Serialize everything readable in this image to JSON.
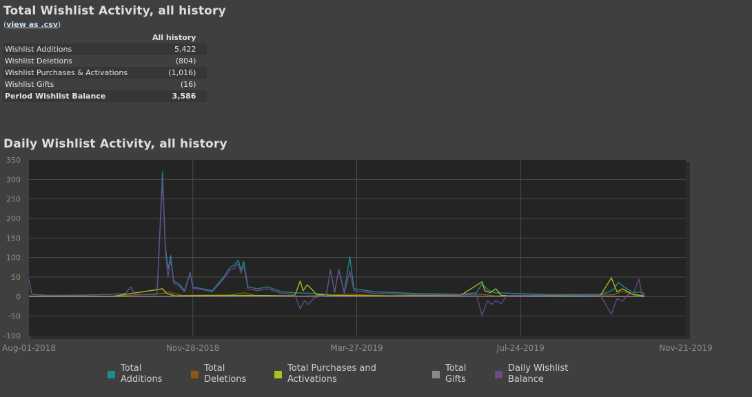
{
  "summary": {
    "title": "Total Wishlist Activity, all history",
    "csv_prefix": "(",
    "csv_link": "view as .csv",
    "csv_suffix": ")",
    "column_header": "All history",
    "rows": [
      {
        "label": "Wishlist Additions",
        "value": "5,422"
      },
      {
        "label": "Wishlist Deletions",
        "value": "(804)"
      },
      {
        "label": "Wishlist Purchases & Activations",
        "value": "(1,016)"
      },
      {
        "label": "Wishlist Gifts",
        "value": "(16)"
      },
      {
        "label": "Period Wishlist Balance",
        "value": "3,586"
      }
    ]
  },
  "chart_title": "Daily Wishlist Activity, all history",
  "chart_data": {
    "type": "line",
    "title": "Daily Wishlist Activity, all history",
    "xlabel": "",
    "ylabel": "",
    "xlim": [
      "2018-08-01",
      "2019-11-21"
    ],
    "ylim": [
      -100,
      350
    ],
    "y_ticks": [
      -100,
      -50,
      0,
      50,
      100,
      150,
      200,
      250,
      300,
      350
    ],
    "x_ticks": [
      "Aug-01-2018",
      "Nov-28-2018",
      "Mar-27-2019",
      "Jul-24-2019",
      "Nov-21-2019"
    ],
    "grid": true,
    "background": "#242424",
    "legend_position": "bottom",
    "series": [
      {
        "name": "Total Additions",
        "color": "#1e8c8c",
        "points": [
          [
            "2018-08-01",
            44
          ],
          [
            "2018-08-03",
            6
          ],
          [
            "2018-08-15",
            3
          ],
          [
            "2018-09-10",
            4
          ],
          [
            "2018-09-30",
            6
          ],
          [
            "2018-10-10",
            8
          ],
          [
            "2018-10-14",
            25
          ],
          [
            "2018-10-17",
            5
          ],
          [
            "2018-11-02",
            6
          ],
          [
            "2018-11-06",
            320
          ],
          [
            "2018-11-08",
            130
          ],
          [
            "2018-11-10",
            70
          ],
          [
            "2018-11-12",
            105
          ],
          [
            "2018-11-14",
            40
          ],
          [
            "2018-11-18",
            32
          ],
          [
            "2018-11-22",
            15
          ],
          [
            "2018-11-26",
            62
          ],
          [
            "2018-11-28",
            25
          ],
          [
            "2018-12-05",
            20
          ],
          [
            "2018-12-12",
            15
          ],
          [
            "2018-12-20",
            48
          ],
          [
            "2018-12-25",
            75
          ],
          [
            "2018-12-28",
            80
          ],
          [
            "2018-12-31",
            93
          ],
          [
            "2019-01-02",
            68
          ],
          [
            "2019-01-04",
            90
          ],
          [
            "2019-01-07",
            25
          ],
          [
            "2019-01-14",
            20
          ],
          [
            "2019-01-21",
            25
          ],
          [
            "2019-02-01",
            12
          ],
          [
            "2019-02-10",
            10
          ],
          [
            "2019-02-25",
            8
          ],
          [
            "2019-03-05",
            6
          ],
          [
            "2019-03-08",
            68
          ],
          [
            "2019-03-11",
            12
          ],
          [
            "2019-03-14",
            70
          ],
          [
            "2019-03-18",
            10
          ],
          [
            "2019-03-22",
            102
          ],
          [
            "2019-03-25",
            20
          ],
          [
            "2019-04-10",
            12
          ],
          [
            "2019-05-10",
            8
          ],
          [
            "2019-06-10",
            6
          ],
          [
            "2019-06-22",
            10
          ],
          [
            "2019-06-26",
            33
          ],
          [
            "2019-06-30",
            18
          ],
          [
            "2019-07-05",
            10
          ],
          [
            "2019-08-15",
            5
          ],
          [
            "2019-09-20",
            6
          ],
          [
            "2019-09-26",
            12
          ],
          [
            "2019-09-30",
            20
          ],
          [
            "2019-10-03",
            37
          ],
          [
            "2019-10-07",
            25
          ],
          [
            "2019-10-14",
            10
          ],
          [
            "2019-10-18",
            12
          ],
          [
            "2019-10-22",
            8
          ]
        ]
      },
      {
        "name": "Total Deletions",
        "color": "#8a5a14",
        "points": [
          [
            "2018-08-01",
            2
          ],
          [
            "2018-09-01",
            1
          ],
          [
            "2018-10-01",
            1
          ],
          [
            "2018-11-06",
            8
          ],
          [
            "2018-11-10",
            12
          ],
          [
            "2018-11-20",
            3
          ],
          [
            "2018-12-25",
            4
          ],
          [
            "2019-01-04",
            10
          ],
          [
            "2019-01-12",
            3
          ],
          [
            "2019-02-15",
            1
          ],
          [
            "2019-03-10",
            4
          ],
          [
            "2019-03-22",
            6
          ],
          [
            "2019-04-20",
            2
          ],
          [
            "2019-06-26",
            6
          ],
          [
            "2019-07-05",
            2
          ],
          [
            "2019-08-20",
            1
          ],
          [
            "2019-09-30",
            5
          ],
          [
            "2019-10-06",
            14
          ],
          [
            "2019-10-14",
            5
          ],
          [
            "2019-10-22",
            2
          ]
        ]
      },
      {
        "name": "Total Purchases and Activations",
        "color": "#a4c61b",
        "points": [
          [
            "2018-08-01",
            0
          ],
          [
            "2018-09-01",
            1
          ],
          [
            "2018-10-01",
            1
          ],
          [
            "2018-11-06",
            20
          ],
          [
            "2018-11-09",
            8
          ],
          [
            "2018-11-15",
            2
          ],
          [
            "2018-12-15",
            3
          ],
          [
            "2019-01-10",
            3
          ],
          [
            "2019-02-10",
            2
          ],
          [
            "2019-02-14",
            40
          ],
          [
            "2019-02-16",
            15
          ],
          [
            "2019-02-19",
            30
          ],
          [
            "2019-02-22",
            20
          ],
          [
            "2019-02-26",
            5
          ],
          [
            "2019-03-15",
            3
          ],
          [
            "2019-04-15",
            2
          ],
          [
            "2019-06-10",
            2
          ],
          [
            "2019-06-26",
            38
          ],
          [
            "2019-06-28",
            15
          ],
          [
            "2019-07-02",
            10
          ],
          [
            "2019-07-06",
            20
          ],
          [
            "2019-07-10",
            3
          ],
          [
            "2019-08-20",
            2
          ],
          [
            "2019-09-20",
            3
          ],
          [
            "2019-09-28",
            48
          ],
          [
            "2019-10-02",
            12
          ],
          [
            "2019-10-06",
            20
          ],
          [
            "2019-10-14",
            5
          ],
          [
            "2019-10-22",
            2
          ]
        ]
      },
      {
        "name": "Total Gifts",
        "color": "#8a8a8a",
        "points": [
          [
            "2018-08-01",
            0
          ],
          [
            "2019-01-04",
            1
          ],
          [
            "2019-06-26",
            1
          ],
          [
            "2019-10-22",
            0
          ]
        ]
      },
      {
        "name": "Daily Wishlist Balance",
        "color": "#6a4a8c",
        "points": [
          [
            "2018-08-01",
            44
          ],
          [
            "2018-08-03",
            6
          ],
          [
            "2018-08-15",
            3
          ],
          [
            "2018-09-10",
            4
          ],
          [
            "2018-09-30",
            6
          ],
          [
            "2018-10-10",
            8
          ],
          [
            "2018-10-14",
            25
          ],
          [
            "2018-10-17",
            5
          ],
          [
            "2018-11-02",
            6
          ],
          [
            "2018-11-06",
            300
          ],
          [
            "2018-11-08",
            120
          ],
          [
            "2018-11-10",
            50
          ],
          [
            "2018-11-12",
            95
          ],
          [
            "2018-11-14",
            35
          ],
          [
            "2018-11-18",
            28
          ],
          [
            "2018-11-22",
            12
          ],
          [
            "2018-11-26",
            60
          ],
          [
            "2018-11-28",
            22
          ],
          [
            "2018-12-05",
            18
          ],
          [
            "2018-12-12",
            12
          ],
          [
            "2018-12-20",
            44
          ],
          [
            "2018-12-25",
            68
          ],
          [
            "2018-12-28",
            72
          ],
          [
            "2018-12-31",
            85
          ],
          [
            "2019-01-02",
            60
          ],
          [
            "2019-01-04",
            80
          ],
          [
            "2019-01-07",
            20
          ],
          [
            "2019-01-14",
            15
          ],
          [
            "2019-01-21",
            20
          ],
          [
            "2019-02-01",
            8
          ],
          [
            "2019-02-10",
            5
          ],
          [
            "2019-02-14",
            -32
          ],
          [
            "2019-02-17",
            -10
          ],
          [
            "2019-02-20",
            -20
          ],
          [
            "2019-02-24",
            -3
          ],
          [
            "2019-03-05",
            4
          ],
          [
            "2019-03-08",
            68
          ],
          [
            "2019-03-11",
            10
          ],
          [
            "2019-03-14",
            68
          ],
          [
            "2019-03-18",
            8
          ],
          [
            "2019-03-22",
            65
          ],
          [
            "2019-03-25",
            15
          ],
          [
            "2019-04-10",
            8
          ],
          [
            "2019-05-10",
            5
          ],
          [
            "2019-06-10",
            4
          ],
          [
            "2019-06-22",
            5
          ],
          [
            "2019-06-26",
            -48
          ],
          [
            "2019-06-30",
            -10
          ],
          [
            "2019-07-03",
            -20
          ],
          [
            "2019-07-06",
            -10
          ],
          [
            "2019-07-10",
            -18
          ],
          [
            "2019-07-14",
            3
          ],
          [
            "2019-08-15",
            4
          ],
          [
            "2019-09-20",
            3
          ],
          [
            "2019-09-28",
            -45
          ],
          [
            "2019-10-02",
            -5
          ],
          [
            "2019-10-06",
            -12
          ],
          [
            "2019-10-10",
            5
          ],
          [
            "2019-10-14",
            8
          ],
          [
            "2019-10-18",
            45
          ],
          [
            "2019-10-20",
            5
          ],
          [
            "2019-10-22",
            4
          ]
        ]
      }
    ]
  }
}
